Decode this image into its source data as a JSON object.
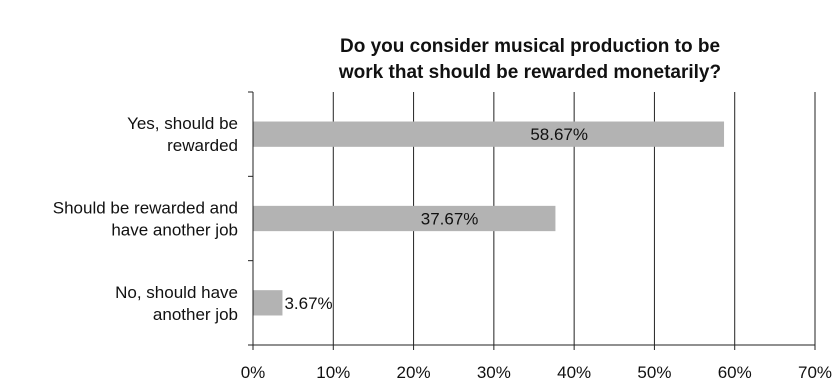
{
  "chart_data": {
    "type": "bar",
    "orientation": "horizontal",
    "title_lines": [
      "Do you consider musical production to be",
      "work that should be rewarded monetarily?"
    ],
    "categories": [
      [
        "Yes, should be",
        "rewarded"
      ],
      [
        "Should be rewarded and",
        "have another job"
      ],
      [
        "No, should have",
        "another job"
      ]
    ],
    "values": [
      58.67,
      37.67,
      3.67
    ],
    "data_labels": [
      "58.67%",
      "37.67%",
      "3.67%"
    ],
    "xlim": [
      0,
      70
    ],
    "x_ticks": [
      0,
      10,
      20,
      30,
      40,
      50,
      60,
      70
    ],
    "x_tick_labels": [
      "0%",
      "10%",
      "20%",
      "30%",
      "40%",
      "50%",
      "60%",
      "70%"
    ],
    "grid": "vertical",
    "legend": "none",
    "colors": {
      "bar": "#b3b3b3",
      "grid": "#222222",
      "axis": "#222222"
    }
  }
}
